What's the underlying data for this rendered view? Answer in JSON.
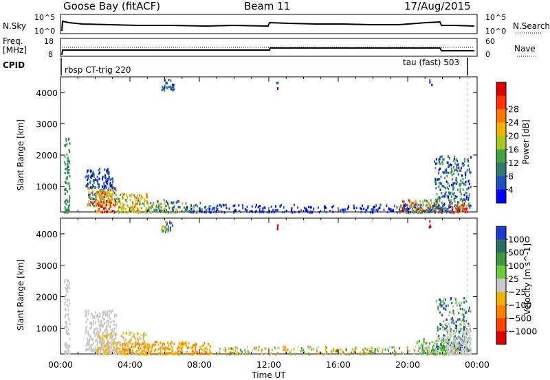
{
  "header": {
    "station": "Goose Bay (fitACF)",
    "beam": "Beam 11",
    "date": "17/Aug/2015"
  },
  "top_panels": {
    "nsky_label": "N.Sky",
    "nsky_ticks": [
      "10^5",
      "10^0"
    ],
    "nsearch_label": "N.Search",
    "nsearch_ticks": [
      "10^5",
      "10^0"
    ],
    "freq_label": "Freq.",
    "freq_unit": "[MHz]",
    "freq_ticks": [
      "18",
      "8"
    ],
    "nave_label": "Nave",
    "nave_ticks": [
      "60",
      "0"
    ],
    "cpid_label": "CPID",
    "cpid_left": "rbsp CT-trig 220",
    "cpid_right": "tau (fast) 503"
  },
  "colors": {
    "power": [
      "#0000ff",
      "#1e4fbf",
      "#2e7a6e",
      "#3fa63f",
      "#a8c81e",
      "#f0b400",
      "#ff7800",
      "#ff3300",
      "#e00000"
    ],
    "velocity": [
      "#1a3ccc",
      "#2a6e66",
      "#3a9a3a",
      "#6acc3a",
      "#c8c8c8",
      "#f0b400",
      "#ff8000",
      "#ff4000",
      "#e00000"
    ]
  },
  "chart_data": [
    {
      "type": "heatmap",
      "name": "power",
      "ylabel": "Slant Range [km]",
      "xlabel": "",
      "x_ticks": [
        "00:00",
        "04:00",
        "08:00",
        "12:00",
        "16:00",
        "20:00",
        "00:00"
      ],
      "y_ticks": [
        1000,
        2000,
        3000,
        4000
      ],
      "xlim": [
        0,
        24
      ],
      "ylim": [
        180,
        4500
      ],
      "colorbar_label": "Power [dB]",
      "colorbar_ticks": [
        "4",
        "8",
        "12",
        "16",
        "20",
        "24",
        "28"
      ],
      "regions": [
        {
          "x": [
            0.2,
            0.5
          ],
          "r": [
            200,
            2600
          ],
          "c": [
            2,
            3
          ]
        },
        {
          "x": [
            1.5,
            3.2
          ],
          "r": [
            400,
            1000
          ],
          "c": [
            1,
            7
          ]
        },
        {
          "x": [
            2.0,
            3.2
          ],
          "r": [
            200,
            900
          ],
          "c": [
            4,
            8
          ]
        },
        {
          "x": [
            3.2,
            5.0
          ],
          "r": [
            200,
            800
          ],
          "c": [
            3,
            6
          ]
        },
        {
          "x": [
            5.0,
            7.0
          ],
          "r": [
            200,
            600
          ],
          "c": [
            1,
            5
          ]
        },
        {
          "x": [
            7.0,
            8.6
          ],
          "r": [
            200,
            500
          ],
          "c": [
            0,
            4
          ]
        },
        {
          "x": [
            1.4,
            3.0
          ],
          "r": [
            1000,
            1600
          ],
          "c": [
            0,
            2
          ]
        },
        {
          "x": [
            8.6,
            23.0
          ],
          "r": [
            200,
            450
          ],
          "c": [
            0,
            1
          ]
        },
        {
          "x": [
            19.5,
            22.0
          ],
          "r": [
            200,
            600
          ],
          "c": [
            2,
            8
          ]
        },
        {
          "x": [
            21.5,
            23.6
          ],
          "r": [
            300,
            2000
          ],
          "c": [
            0,
            3
          ]
        },
        {
          "x": [
            22.4,
            23.4
          ],
          "r": [
            200,
            500
          ],
          "c": [
            5,
            8
          ]
        },
        {
          "x": [
            5.8,
            6.5
          ],
          "r": [
            4100,
            4450
          ],
          "c": [
            0,
            2
          ]
        },
        {
          "x": [
            12.4,
            12.5
          ],
          "r": [
            4150,
            4350
          ],
          "c": [
            0,
            1
          ]
        },
        {
          "x": [
            21.2,
            21.4
          ],
          "r": [
            4250,
            4450
          ],
          "c": [
            0,
            1
          ]
        }
      ]
    },
    {
      "type": "heatmap",
      "name": "velocity",
      "ylabel": "Slant Range [km]",
      "xlabel": "Time UT",
      "x_ticks": [
        "00:00",
        "04:00",
        "08:00",
        "12:00",
        "16:00",
        "20:00",
        "00:00"
      ],
      "y_ticks": [
        1000,
        2000,
        3000,
        4000
      ],
      "xlim": [
        0,
        24
      ],
      "ylim": [
        180,
        4500
      ],
      "colorbar_label": "Velocity [m s^-1]",
      "colorbar_ticks": [
        "1000",
        "500",
        "100",
        "25",
        "−25",
        "−100",
        "−500",
        "−1000"
      ],
      "regions": [
        {
          "x": [
            0.2,
            0.5
          ],
          "r": [
            200,
            2600
          ],
          "c": [
            4,
            4
          ]
        },
        {
          "x": [
            1.4,
            3.2
          ],
          "r": [
            300,
            1600
          ],
          "c": [
            4,
            4
          ]
        },
        {
          "x": [
            2.0,
            5.0
          ],
          "r": [
            200,
            900
          ],
          "c": [
            4,
            5
          ]
        },
        {
          "x": [
            3.5,
            8.6
          ],
          "r": [
            200,
            600
          ],
          "c": [
            5,
            6
          ]
        },
        {
          "x": [
            8.6,
            23.0
          ],
          "r": [
            200,
            450
          ],
          "c": [
            2,
            6
          ]
        },
        {
          "x": [
            20.5,
            22.5
          ],
          "r": [
            200,
            700
          ],
          "c": [
            2,
            4
          ]
        },
        {
          "x": [
            21.6,
            23.6
          ],
          "r": [
            300,
            2000
          ],
          "c": [
            0,
            4
          ]
        },
        {
          "x": [
            22.2,
            23.6
          ],
          "r": [
            200,
            1000
          ],
          "c": [
            4,
            4
          ]
        },
        {
          "x": [
            5.8,
            6.5
          ],
          "r": [
            4100,
            4450
          ],
          "c": [
            0,
            6
          ]
        },
        {
          "x": [
            12.4,
            12.5
          ],
          "r": [
            4150,
            4350
          ],
          "c": [
            8,
            8
          ]
        },
        {
          "x": [
            21.2,
            21.4
          ],
          "r": [
            4250,
            4450
          ],
          "c": [
            8,
            8
          ]
        }
      ]
    }
  ]
}
